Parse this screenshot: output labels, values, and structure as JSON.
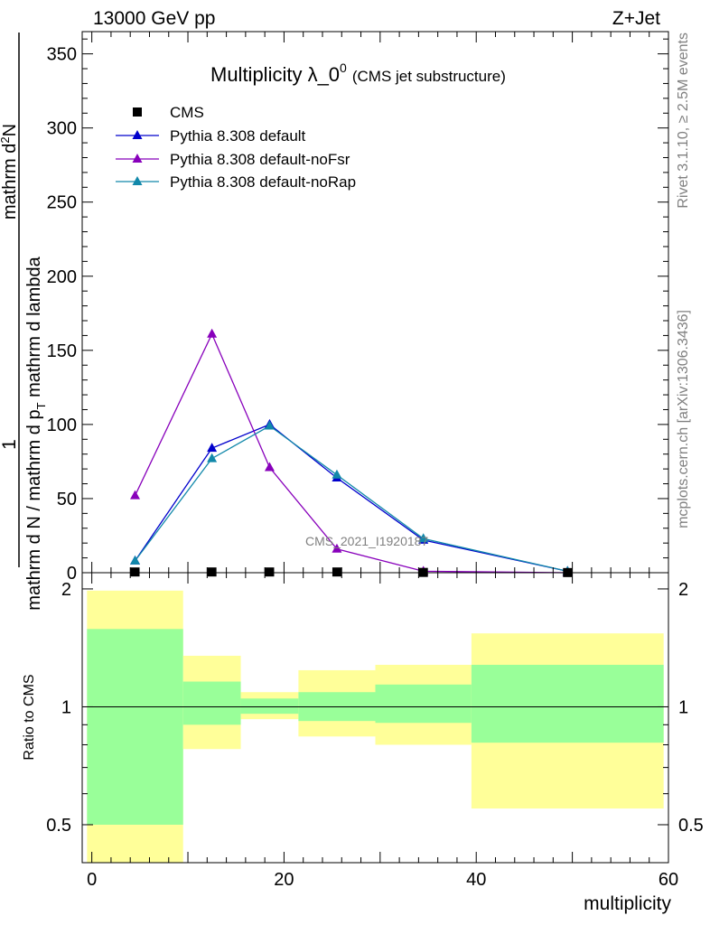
{
  "header": {
    "left": "13000 GeV pp",
    "right": "Z+Jet"
  },
  "side_labels": {
    "rivet": "Rivet 3.1.10, ≥ 2.5M events",
    "mcplots": "mcplots.cern.ch [arXiv:1306.3436]"
  },
  "watermark": "CMS_2021_I1920187",
  "colors": {
    "default": "#0000cc",
    "noFsr": "#8800bb",
    "noRap": "#1188aa",
    "cms": "#000000",
    "band_outer": "#ffff99",
    "band_inner": "#99ff99"
  },
  "chart_data": [
    {
      "type": "line",
      "title": "Multiplicity λ_0",
      "title_sup": "0",
      "subtitle": "(CMS jet substructure)",
      "ylabel_num": "1",
      "ylabel_mid": "mathrm d N / mathrm d p",
      "ylabel_mid_sub": "T",
      "ylabel_mid_tail": " mathrm d lambda",
      "ylabel_top": "mathrm d",
      "ylabel_top_sup": "2",
      "ylabel_top_tail": "N",
      "ylabel_bot": "mathrm d p",
      "ylabel_bot_sub": "T",
      "ylabel_bot_tail": " mathrm d lambda",
      "xlim": [
        -1,
        60
      ],
      "ylim": [
        0,
        365
      ],
      "yticks": [
        0,
        50,
        100,
        150,
        200,
        250,
        300,
        350
      ],
      "legend_position": "top-left",
      "series": [
        {
          "name": "CMS",
          "marker": "square",
          "x": [
            4.5,
            12.5,
            18.5,
            25.5,
            34.5,
            49.5
          ],
          "y": [
            0.5,
            0.5,
            0.5,
            0.5,
            0.2,
            0.1
          ]
        },
        {
          "name": "Pythia 8.308 default",
          "marker": "triangle",
          "x": [
            4.5,
            12.5,
            18.5,
            25.5,
            34.5,
            49.5
          ],
          "y": [
            8,
            84,
            100,
            64,
            22,
            1
          ]
        },
        {
          "name": "Pythia 8.308 default-noFsr",
          "marker": "triangle",
          "x": [
            4.5,
            12.5,
            18.5,
            25.5,
            34.5,
            49.5
          ],
          "y": [
            52,
            161,
            71,
            16,
            1,
            0
          ]
        },
        {
          "name": "Pythia 8.308 default-noRap",
          "marker": "triangle",
          "x": [
            4.5,
            12.5,
            18.5,
            25.5,
            34.5,
            49.5
          ],
          "y": [
            8,
            77,
            99,
            66,
            23,
            1
          ]
        }
      ]
    },
    {
      "type": "area",
      "ylabel": "Ratio to CMS",
      "xlabel": "multiplicity",
      "scale": "log",
      "xlim": [
        -1,
        60
      ],
      "ylim": [
        0.4,
        2.2
      ],
      "yticks": [
        0.5,
        1,
        2
      ],
      "xticks": [
        0,
        20,
        40,
        60
      ],
      "reference_line": 1,
      "bins": [
        {
          "x0": -0.5,
          "x1": 9.5,
          "outer": [
            0.4,
            1.98
          ],
          "inner": [
            0.5,
            1.58
          ]
        },
        {
          "x0": 9.5,
          "x1": 15.5,
          "outer": [
            0.78,
            1.35
          ],
          "inner": [
            0.9,
            1.16
          ]
        },
        {
          "x0": 15.5,
          "x1": 21.5,
          "outer": [
            0.93,
            1.09
          ],
          "inner": [
            0.96,
            1.05
          ]
        },
        {
          "x0": 21.5,
          "x1": 29.5,
          "outer": [
            0.84,
            1.24
          ],
          "inner": [
            0.92,
            1.09
          ]
        },
        {
          "x0": 29.5,
          "x1": 39.5,
          "outer": [
            0.8,
            1.28
          ],
          "inner": [
            0.91,
            1.14
          ]
        },
        {
          "x0": 39.5,
          "x1": 59.5,
          "outer": [
            0.55,
            1.54
          ],
          "inner": [
            0.81,
            1.28
          ]
        }
      ]
    }
  ]
}
